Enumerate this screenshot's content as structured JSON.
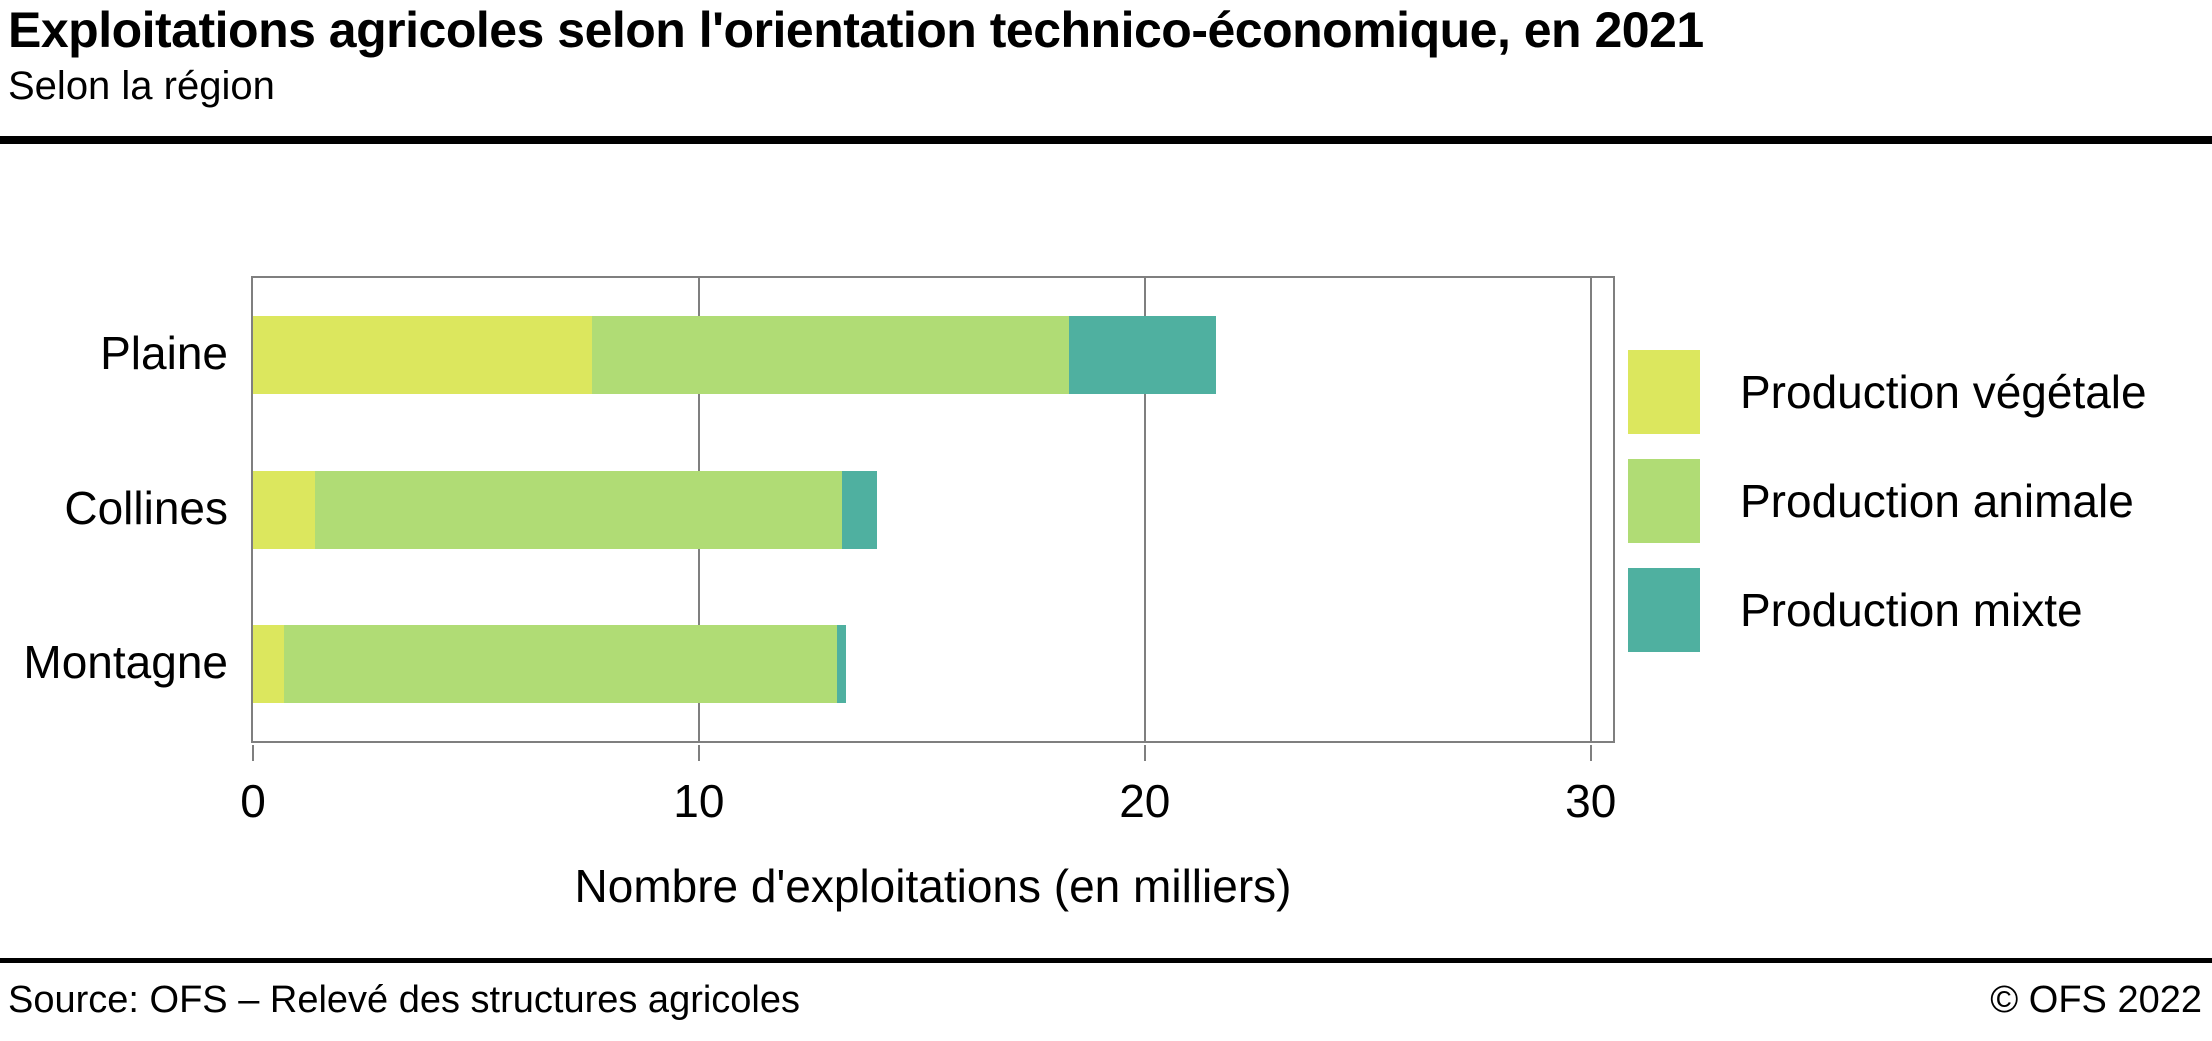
{
  "header": {
    "title": "Exploitations agricoles selon l'orientation technico-économique, en 2021",
    "subtitle": "Selon la région"
  },
  "chart_data": {
    "type": "bar",
    "orientation": "horizontal",
    "stacked": true,
    "title": "Exploitations agricoles selon l'orientation technico-économique, en 2021",
    "subtitle": "Selon la région",
    "categories": [
      "Plaine",
      "Collines",
      "Montagne"
    ],
    "series": [
      {
        "name": "Production végétale",
        "color": "#dce75e",
        "values": [
          7.6,
          1.4,
          0.7
        ]
      },
      {
        "name": "Production animale",
        "color": "#b0dc75",
        "values": [
          10.7,
          11.8,
          12.4
        ]
      },
      {
        "name": "Production mixte",
        "color": "#4fb0a0",
        "values": [
          3.3,
          0.8,
          0.2
        ]
      }
    ],
    "xlabel": "Nombre d'exploitations (en milliers)",
    "ylabel": "",
    "xlim": [
      0,
      30.5
    ],
    "xticks": [
      0,
      10,
      20,
      30
    ],
    "grid": "vertical-gridlines-at-10-and-20",
    "legend_position": "right-of-plot"
  },
  "colors": {
    "frame_and_grid": "#7f7f7f",
    "rules": "#000000",
    "background": "#ffffff",
    "text": "#000000"
  },
  "footer": {
    "source": "Source: OFS – Relevé des structures agricoles",
    "copyright": "© OFS 2022"
  }
}
